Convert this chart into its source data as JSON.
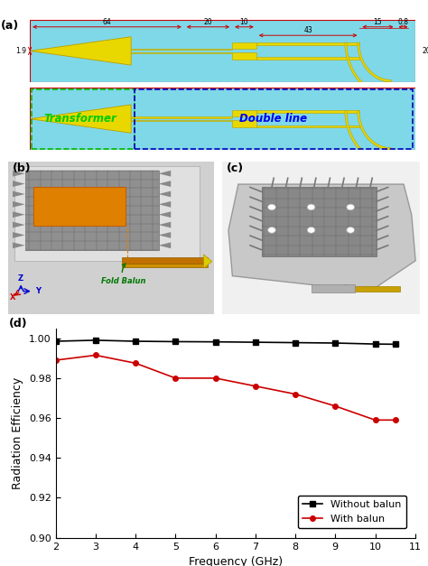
{
  "panel_d": {
    "freq_without": [
      2,
      3,
      4,
      5,
      6,
      7,
      8,
      9,
      10,
      10.5
    ],
    "eff_without": [
      0.9985,
      0.999,
      0.9985,
      0.9983,
      0.9982,
      0.998,
      0.9978,
      0.9976,
      0.9971,
      0.997
    ],
    "freq_with": [
      2,
      3,
      4,
      5,
      6,
      7,
      8,
      9,
      10,
      10.5
    ],
    "eff_with": [
      0.989,
      0.9915,
      0.9875,
      0.98,
      0.98,
      0.976,
      0.972,
      0.966,
      0.959,
      0.959
    ],
    "color_without": "#000000",
    "color_with": "#cc0000",
    "xlabel": "Frequency (GHz)",
    "ylabel": "Radiation Efficiency",
    "ylim": [
      0.9,
      1.005
    ],
    "xlim": [
      2,
      11
    ],
    "yticks": [
      0.9,
      0.92,
      0.94,
      0.96,
      0.98,
      1.0
    ],
    "xticks": [
      2,
      3,
      4,
      5,
      6,
      7,
      8,
      9,
      10,
      11
    ],
    "legend_without": "Without balun",
    "legend_with": "With balun"
  },
  "panel_a": {
    "bg_color": "#7fd8e8",
    "tape_color": "#e8d800",
    "tape_edge": "#b8a000",
    "outline_color": "#cc0000",
    "dim_labels": [
      "64",
      "20",
      "10",
      "43",
      "15",
      "0.8",
      "1.9",
      "20"
    ],
    "transformer_text": "Transformer",
    "doubleline_text": "Double line",
    "transformer_color": "#00cc00",
    "doubleline_color": "#0000ee",
    "green_dash": "#00bb00",
    "blue_dash": "#0000bb"
  },
  "figure": {
    "bg_color": "#ffffff",
    "figsize": [
      4.74,
      6.27
    ],
    "dpi": 100
  }
}
